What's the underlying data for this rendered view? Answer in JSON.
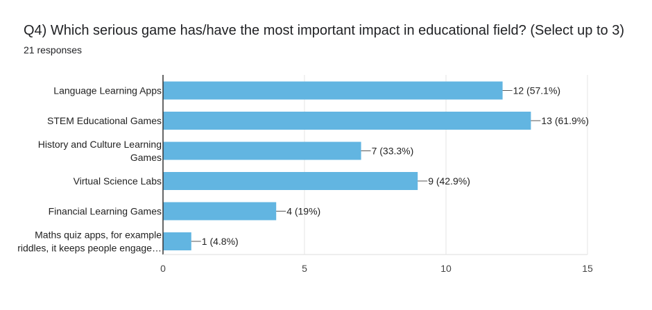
{
  "title": "Q4) Which serious game has/have the most important impact in educational field?   (Select up to 3)",
  "subtitle": "21 responses",
  "chart_data": {
    "type": "bar",
    "orientation": "horizontal",
    "categories": [
      [
        "Language Learning Apps"
      ],
      [
        "STEM Educational Games"
      ],
      [
        "History and Culture Learning",
        "Games"
      ],
      [
        "Virtual Science Labs"
      ],
      [
        "Financial Learning Games"
      ],
      [
        "Maths quiz apps, for example",
        "riddles, it keeps people engage…"
      ]
    ],
    "values": [
      12,
      13,
      7,
      9,
      4,
      1
    ],
    "data_labels": [
      "12 (57.1%)",
      "13 (61.9%)",
      "7 (33.3%)",
      "9 (42.9%)",
      "4 (19%)",
      "1 (4.8%)"
    ],
    "xlim": [
      0,
      15
    ],
    "xticks": [
      0,
      5,
      10,
      15
    ],
    "grid": true,
    "bar_color": "#62b5e1"
  }
}
